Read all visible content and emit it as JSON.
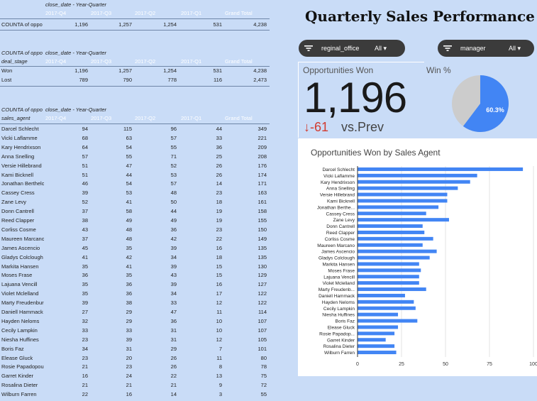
{
  "pivot1": {
    "col_header": "close_date - Year-Quarter",
    "cols": [
      "2017-Q4",
      "2017-Q3",
      "2017-Q2",
      "2017-Q1",
      "Grand Total"
    ],
    "rows": [
      {
        "label": "COUNTA of oppo",
        "v": [
          "1,196",
          "1,257",
          "1,254",
          "531",
          "4,238"
        ]
      }
    ]
  },
  "pivot2": {
    "row_header": "COUNTA of oppo",
    "col_header": "close_date - Year-Quarter",
    "dim": "deal_stage",
    "cols": [
      "2017-Q4",
      "2017-Q3",
      "2017-Q2",
      "2017-Q1",
      "Grand Total"
    ],
    "rows": [
      {
        "label": "Won",
        "v": [
          "1,196",
          "1,257",
          "1,254",
          "531",
          "4,238"
        ]
      },
      {
        "label": "Lost",
        "v": [
          "789",
          "790",
          "778",
          "116",
          "2,473"
        ]
      }
    ]
  },
  "pivot3": {
    "row_header": "COUNTA of oppo",
    "col_header": "close_date - Year-Quarter",
    "dim": "sales_agent",
    "cols": [
      "2017-Q4",
      "2017-Q3",
      "2017-Q2",
      "2017-Q1",
      "Grand Total"
    ],
    "rows": [
      {
        "label": "Darcel Schlecht",
        "v": [
          "94",
          "115",
          "96",
          "44",
          "349"
        ]
      },
      {
        "label": "Vicki Laflamme",
        "v": [
          "68",
          "63",
          "57",
          "33",
          "221"
        ]
      },
      {
        "label": "Kary Hendrixson",
        "v": [
          "64",
          "54",
          "55",
          "36",
          "209"
        ]
      },
      {
        "label": "Anna Snelling",
        "v": [
          "57",
          "55",
          "71",
          "25",
          "208"
        ]
      },
      {
        "label": "Versie Hillebrand",
        "v": [
          "51",
          "47",
          "52",
          "26",
          "176"
        ]
      },
      {
        "label": "Kami Bicknell",
        "v": [
          "51",
          "44",
          "53",
          "26",
          "174"
        ]
      },
      {
        "label": "Jonathan Berthelot",
        "v": [
          "46",
          "54",
          "57",
          "14",
          "171"
        ]
      },
      {
        "label": "Cassey Cress",
        "v": [
          "39",
          "53",
          "48",
          "23",
          "163"
        ]
      },
      {
        "label": "Zane Levy",
        "v": [
          "52",
          "41",
          "50",
          "18",
          "161"
        ]
      },
      {
        "label": "Donn Cantrell",
        "v": [
          "37",
          "58",
          "44",
          "19",
          "158"
        ]
      },
      {
        "label": "Reed Clapper",
        "v": [
          "38",
          "49",
          "49",
          "19",
          "155"
        ]
      },
      {
        "label": "Corliss Cosme",
        "v": [
          "43",
          "48",
          "36",
          "23",
          "150"
        ]
      },
      {
        "label": "Maureen Marcano",
        "v": [
          "37",
          "48",
          "42",
          "22",
          "149"
        ]
      },
      {
        "label": "James Ascencio",
        "v": [
          "45",
          "35",
          "39",
          "16",
          "135"
        ]
      },
      {
        "label": "Gladys Colclough",
        "v": [
          "41",
          "42",
          "34",
          "18",
          "135"
        ]
      },
      {
        "label": "Markita Hansen",
        "v": [
          "35",
          "41",
          "39",
          "15",
          "130"
        ]
      },
      {
        "label": "Moses Frase",
        "v": [
          "36",
          "35",
          "43",
          "15",
          "129"
        ]
      },
      {
        "label": "Lajuana Vencill",
        "v": [
          "35",
          "36",
          "39",
          "16",
          "127"
        ]
      },
      {
        "label": "Violet Mclelland",
        "v": [
          "35",
          "36",
          "34",
          "17",
          "122"
        ]
      },
      {
        "label": "Marty Freudenburg",
        "v": [
          "39",
          "38",
          "33",
          "12",
          "122"
        ]
      },
      {
        "label": "Daniell Hammack",
        "v": [
          "27",
          "29",
          "47",
          "11",
          "114"
        ]
      },
      {
        "label": "Hayden Neloms",
        "v": [
          "32",
          "29",
          "36",
          "10",
          "107"
        ]
      },
      {
        "label": "Cecily Lampkin",
        "v": [
          "33",
          "33",
          "31",
          "10",
          "107"
        ]
      },
      {
        "label": "Niesha Huffines",
        "v": [
          "23",
          "39",
          "31",
          "12",
          "105"
        ]
      },
      {
        "label": "Boris Faz",
        "v": [
          "34",
          "31",
          "29",
          "7",
          "101"
        ]
      },
      {
        "label": "Elease Gluck",
        "v": [
          "23",
          "20",
          "26",
          "11",
          "80"
        ]
      },
      {
        "label": "Rosie Papadopoulos",
        "v": [
          "21",
          "23",
          "26",
          "8",
          "78"
        ]
      },
      {
        "label": "Garret Kinder",
        "v": [
          "16",
          "24",
          "22",
          "13",
          "75"
        ]
      },
      {
        "label": "Rosalina Dieter",
        "v": [
          "21",
          "21",
          "21",
          "9",
          "72"
        ]
      },
      {
        "label": "Wilburn Farren",
        "v": [
          "22",
          "16",
          "14",
          "3",
          "55"
        ]
      }
    ]
  },
  "title": "Quarterly Sales Performance",
  "filters": [
    {
      "name": "reginal_office",
      "value": "All"
    },
    {
      "name": "manager",
      "value": "All"
    }
  ],
  "kpi": {
    "label": "Opportunities Won",
    "value": "1,196",
    "delta": "-61",
    "vs": "vs.Prev"
  },
  "win": {
    "label": "Win %",
    "pct_label": "60.3%",
    "fraction": 0.603,
    "color": "#4285f4"
  },
  "chart_data": {
    "type": "bar",
    "orientation": "horizontal",
    "title": "Opportunities Won by Sales Agent",
    "color": "#4285f4",
    "categories": [
      "Darcel Schlecht",
      "Vicki Laflamme",
      "Kary Hendrixson",
      "Anna Snelling",
      "Versie Hillebrand",
      "Kami Bicknell",
      "Jonathan Berthe...",
      "Cassey Cress",
      "Zane Levy",
      "Donn Cantrell",
      "Reed Clapper",
      "Corliss Cosme",
      "Maureen Marcano",
      "James Ascencio",
      "Gladys Colclough",
      "Markita Hansen",
      "Moses Frase",
      "Lajuana Vencill",
      "Violet Mclelland",
      "Marty Freudenb...",
      "Daniell Hammack",
      "Hayden Neloms",
      "Cecily Lampkin",
      "Niesha Huffines",
      "Boris Faz",
      "Elease Gluck",
      "Rosie Papadop...",
      "Garret Kinder",
      "Rosalina Dieter",
      "Wilburn Farren"
    ],
    "values": [
      94,
      68,
      64,
      57,
      51,
      51,
      46,
      39,
      52,
      37,
      38,
      43,
      37,
      45,
      41,
      35,
      36,
      35,
      35,
      39,
      27,
      32,
      33,
      23,
      34,
      23,
      21,
      16,
      21,
      22
    ],
    "xlim": [
      0,
      100
    ],
    "xticks": [
      "0",
      "25",
      "50",
      "75",
      "100"
    ],
    "grid": true
  }
}
